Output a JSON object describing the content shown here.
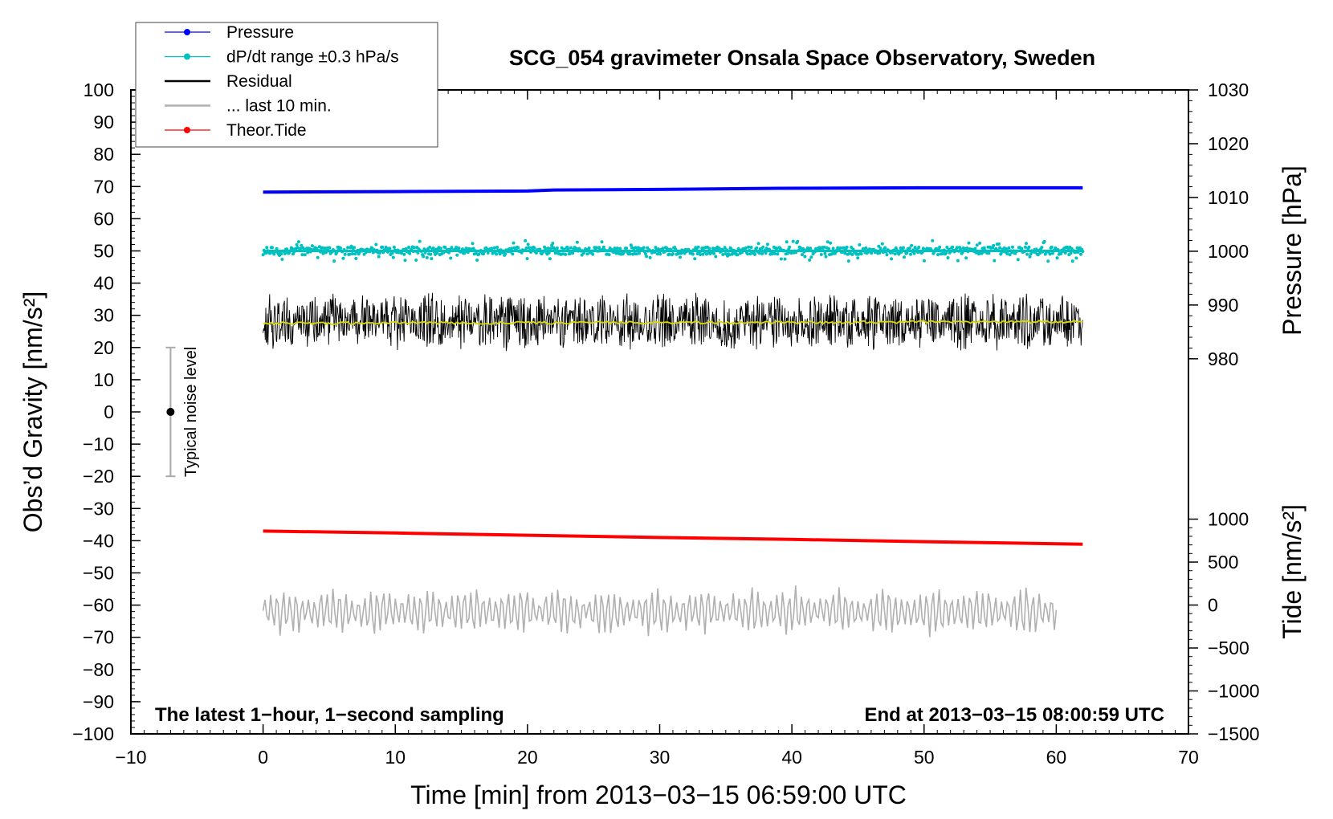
{
  "chart_data": {
    "type": "line",
    "title": "SCG_054 gravimeter Onsala Space Observatory, Sweden",
    "xlabel": "Time [min] from 2013−03−15 06:59:00 UTC",
    "ylabel_left": "Obs’d Gravity [nm/s²]",
    "ylabel_right_top": "Pressure [hPa]",
    "ylabel_right_bottom": "Tide [nm/s²]",
    "note_left": "The latest 1−hour, 1−second sampling",
    "note_right": "End at 2013−03−15 08:00:59 UTC",
    "noise_label": "Typical noise level",
    "xlim": [
      -10,
      70
    ],
    "ylim": [
      -100,
      100
    ],
    "x_ticks": [
      -10,
      0,
      10,
      20,
      30,
      40,
      50,
      60,
      70
    ],
    "x_tick_labels": [
      "−10",
      "0",
      "10",
      "20",
      "30",
      "40",
      "50",
      "60",
      "70"
    ],
    "y_ticks": [
      100,
      90,
      80,
      70,
      60,
      50,
      40,
      30,
      20,
      10,
      0,
      -10,
      -20,
      -30,
      -40,
      -50,
      -60,
      -70,
      -80,
      -90,
      -100
    ],
    "y_tick_labels": [
      "100",
      "90",
      "80",
      "70",
      "60",
      "50",
      "40",
      "30",
      "20",
      "10",
      "0",
      "−10",
      "−20",
      "−30",
      "−40",
      "−50",
      "−60",
      "−70",
      "−80",
      "−90",
      "−100"
    ],
    "pressure_axis": {
      "ticks": [
        1030,
        1020,
        1010,
        1000,
        990,
        980
      ],
      "tick_labels": [
        "1030",
        "1020",
        "1010",
        "1000",
        "990",
        "980"
      ],
      "range_hpa": [
        980,
        1030
      ],
      "gravity_equiv": [
        16.5,
        100
      ]
    },
    "tide_axis": {
      "ticks": [
        1000,
        500,
        0,
        -500,
        -1000,
        -1500
      ],
      "tick_labels": [
        "1000",
        "500",
        "0",
        "−500",
        "−1000",
        "−1500"
      ],
      "range": [
        -1500,
        1000
      ],
      "gravity_equiv": [
        -100,
        -33.3
      ]
    },
    "legend": [
      {
        "label": "Pressure",
        "color": "#0000ff",
        "style": "line-dot"
      },
      {
        "label": "dP/dt range ±0.3 hPa/s",
        "color": "#00c0c0",
        "style": "line-dot"
      },
      {
        "label": "Residual",
        "color": "#000000",
        "style": "line"
      },
      {
        "label": "... last 10 min.",
        "color": "#b0b0b0",
        "style": "line"
      },
      {
        "label": "Theor.Tide",
        "color": "#ff0000",
        "style": "line-dot"
      }
    ],
    "series": [
      {
        "name": "Pressure",
        "color": "#0000ff",
        "x": [
          0,
          10,
          20,
          22,
          30,
          39,
          50,
          62
        ],
        "y_pressure_hpa": [
          1011.0,
          1011.1,
          1011.2,
          1011.4,
          1011.5,
          1011.7,
          1011.8,
          1011.8
        ]
      },
      {
        "name": "dP/dt range",
        "color": "#00c0c0",
        "x": [
          0,
          62
        ],
        "y": [
          50,
          50
        ],
        "spread": 2
      },
      {
        "name": "Residual",
        "color": "#000000",
        "x": [
          0,
          62
        ],
        "y_mean": 28,
        "spread": 7
      },
      {
        "name": "Residual mean",
        "color": "#d8d800",
        "x": [
          0,
          62
        ],
        "y": [
          27.5,
          28
        ]
      },
      {
        "name": "Theor.Tide",
        "color": "#ff0000",
        "x": [
          0,
          10,
          20,
          30,
          40,
          50,
          62
        ],
        "y": [
          -37.0,
          -37.6,
          -38.3,
          -39.0,
          -39.6,
          -40.3,
          -41.1
        ]
      },
      {
        "name": "... last 10 min.",
        "color": "#b0b0b0",
        "x": [
          0,
          60
        ],
        "y_mean": -62,
        "spread": 6
      }
    ],
    "noise_bar": {
      "x": -7,
      "y": 0,
      "ymin": -20,
      "ymax": 20
    }
  }
}
